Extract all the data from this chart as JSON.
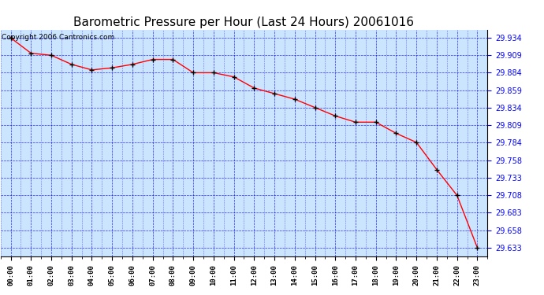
{
  "title": "Barometric Pressure per Hour (Last 24 Hours) 20061016",
  "copyright": "Copyright 2006 Cantronics.com",
  "x_labels": [
    "00:00",
    "01:00",
    "02:00",
    "03:00",
    "04:00",
    "05:00",
    "06:00",
    "07:00",
    "08:00",
    "09:00",
    "10:00",
    "11:00",
    "12:00",
    "13:00",
    "14:00",
    "15:00",
    "16:00",
    "17:00",
    "18:00",
    "19:00",
    "20:00",
    "21:00",
    "22:00",
    "23:00"
  ],
  "y_values": [
    29.934,
    29.912,
    29.909,
    29.896,
    29.888,
    29.891,
    29.896,
    29.903,
    29.903,
    29.884,
    29.884,
    29.878,
    29.862,
    29.854,
    29.846,
    29.834,
    29.822,
    29.813,
    29.813,
    29.797,
    29.784,
    29.745,
    29.708,
    29.633
  ],
  "y_ticks": [
    29.633,
    29.658,
    29.683,
    29.708,
    29.733,
    29.758,
    29.784,
    29.809,
    29.834,
    29.859,
    29.884,
    29.909,
    29.934
  ],
  "ylim_min": 29.62,
  "ylim_max": 29.946,
  "line_color": "red",
  "marker_color": "black",
  "bg_color": "#cce5ff",
  "grid_color": "blue",
  "title_color": "black",
  "title_fontsize": 11,
  "copyright_fontsize": 6.5,
  "tick_label_color": "blue",
  "outer_bg": "white"
}
